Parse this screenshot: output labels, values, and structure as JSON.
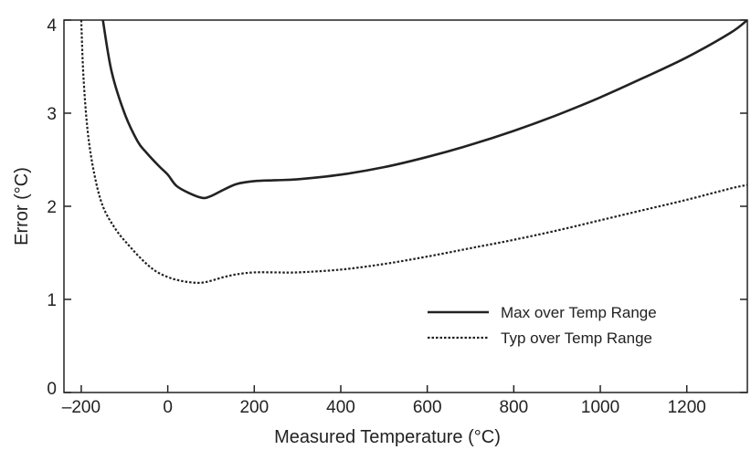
{
  "chart_data": {
    "type": "line",
    "title": "",
    "xlabel": "Measured Temperature (°C)",
    "ylabel": "Error (°C)",
    "xlim": [
      -240,
      1340
    ],
    "ylim": [
      0,
      4
    ],
    "xticks": [
      -200,
      0,
      200,
      400,
      600,
      800,
      1000,
      1200
    ],
    "xtick_labels": [
      "–200",
      "0",
      "200",
      "400",
      "600",
      "800",
      "1000",
      "1200"
    ],
    "yticks": [
      0,
      1,
      2,
      3,
      4
    ],
    "ytick_labels": [
      "0",
      "1",
      "2",
      "3",
      "4"
    ],
    "grid": false,
    "legend_position": "bottom-right",
    "series": [
      {
        "name": "Max over Temp Range",
        "style": "solid",
        "color": "#222222",
        "x": [
          -150,
          -130,
          -100,
          -70,
          -50,
          -20,
          0,
          20,
          50,
          80,
          100,
          130,
          160,
          200,
          250,
          300,
          400,
          500,
          600,
          700,
          800,
          900,
          1000,
          1100,
          1200,
          1300,
          1340
        ],
        "y": [
          4.0,
          3.45,
          3.0,
          2.7,
          2.58,
          2.43,
          2.34,
          2.22,
          2.14,
          2.09,
          2.11,
          2.18,
          2.24,
          2.27,
          2.28,
          2.29,
          2.34,
          2.42,
          2.53,
          2.66,
          2.81,
          2.98,
          3.17,
          3.38,
          3.6,
          3.86,
          4.0
        ]
      },
      {
        "name": "Typ over Temp Range",
        "style": "dotted",
        "color": "#222222",
        "x": [
          -200,
          -195,
          -185,
          -170,
          -150,
          -120,
          -90,
          -60,
          -30,
          0,
          30,
          60,
          80,
          100,
          130,
          160,
          200,
          250,
          300,
          400,
          500,
          600,
          700,
          800,
          900,
          1000,
          1100,
          1200,
          1300,
          1340
        ],
        "y": [
          4.0,
          3.4,
          2.8,
          2.35,
          2.0,
          1.75,
          1.58,
          1.43,
          1.31,
          1.24,
          1.2,
          1.18,
          1.18,
          1.2,
          1.24,
          1.27,
          1.29,
          1.29,
          1.29,
          1.32,
          1.38,
          1.46,
          1.55,
          1.64,
          1.74,
          1.85,
          1.96,
          2.07,
          2.19,
          2.23
        ]
      }
    ],
    "legend": [
      {
        "label": "Max over Temp Range",
        "style": "solid"
      },
      {
        "label": "Typ over Temp Range",
        "style": "dotted"
      }
    ]
  }
}
